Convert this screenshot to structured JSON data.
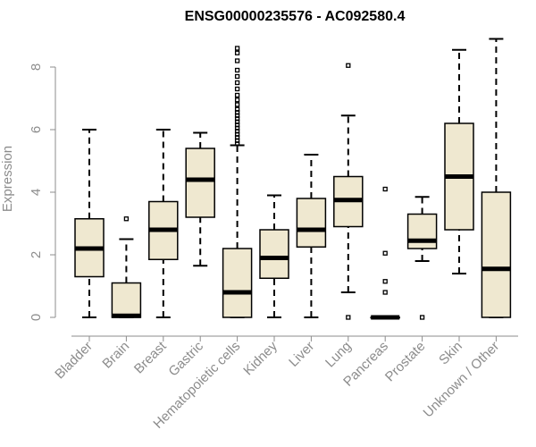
{
  "chart_data": {
    "type": "box",
    "title": "ENSG00000235576 - AC092580.4",
    "ylabel": "Expression",
    "xlabel": "",
    "ylim": [
      0,
      9
    ],
    "yticks": [
      0,
      2,
      4,
      6,
      8
    ],
    "grid": false,
    "colors": {
      "box_fill": "#efe8d0",
      "box_stroke": "#000000",
      "axis": "#8c8c8c"
    },
    "categories": [
      "Bladder",
      "Brain",
      "Breast",
      "Gastric",
      "Hematopoietic cells",
      "Kidney",
      "Liver",
      "Lung",
      "Pancreas",
      "Prostate",
      "Skin",
      "Unknown / Other"
    ],
    "boxes": [
      {
        "min": 0.0,
        "q1": 1.3,
        "median": 2.2,
        "q3": 3.15,
        "max": 6.0,
        "outliers": []
      },
      {
        "min": 0.0,
        "q1": 0.0,
        "median": 0.05,
        "q3": 1.1,
        "max": 2.5,
        "outliers": [
          3.15
        ]
      },
      {
        "min": 0.0,
        "q1": 1.85,
        "median": 2.8,
        "q3": 3.7,
        "max": 6.0,
        "outliers": []
      },
      {
        "min": 1.65,
        "q1": 3.2,
        "median": 4.4,
        "q3": 5.4,
        "max": 5.9,
        "outliers": []
      },
      {
        "min": 0.0,
        "q1": 0.0,
        "median": 0.8,
        "q3": 2.2,
        "max": 5.5,
        "outliers": [
          5.55,
          5.65,
          5.75,
          5.85,
          5.95,
          6.05,
          6.15,
          6.25,
          6.35,
          6.45,
          6.55,
          6.65,
          6.8,
          6.95,
          7.1,
          7.3,
          7.5,
          7.7,
          7.9,
          8.2,
          8.45,
          8.6
        ]
      },
      {
        "min": 0.0,
        "q1": 1.25,
        "median": 1.9,
        "q3": 2.8,
        "max": 3.9,
        "outliers": []
      },
      {
        "min": 0.0,
        "q1": 2.25,
        "median": 2.8,
        "q3": 3.8,
        "max": 5.2,
        "outliers": []
      },
      {
        "min": 0.8,
        "q1": 2.9,
        "median": 3.75,
        "q3": 4.5,
        "max": 6.45,
        "outliers": [
          0.0,
          8.05
        ]
      },
      {
        "min": 0.0,
        "q1": 0.0,
        "median": 0.0,
        "q3": 0.0,
        "max": 0.0,
        "outliers": [
          0.8,
          1.15,
          2.05,
          4.1
        ]
      },
      {
        "min": 1.8,
        "q1": 2.2,
        "median": 2.45,
        "q3": 3.3,
        "max": 3.85,
        "outliers": [
          0.0
        ]
      },
      {
        "min": 1.4,
        "q1": 2.8,
        "median": 4.5,
        "q3": 6.2,
        "max": 8.55,
        "outliers": []
      },
      {
        "min": 0.0,
        "q1": 0.0,
        "median": 1.55,
        "q3": 4.0,
        "max": 8.9,
        "outliers": []
      }
    ]
  }
}
